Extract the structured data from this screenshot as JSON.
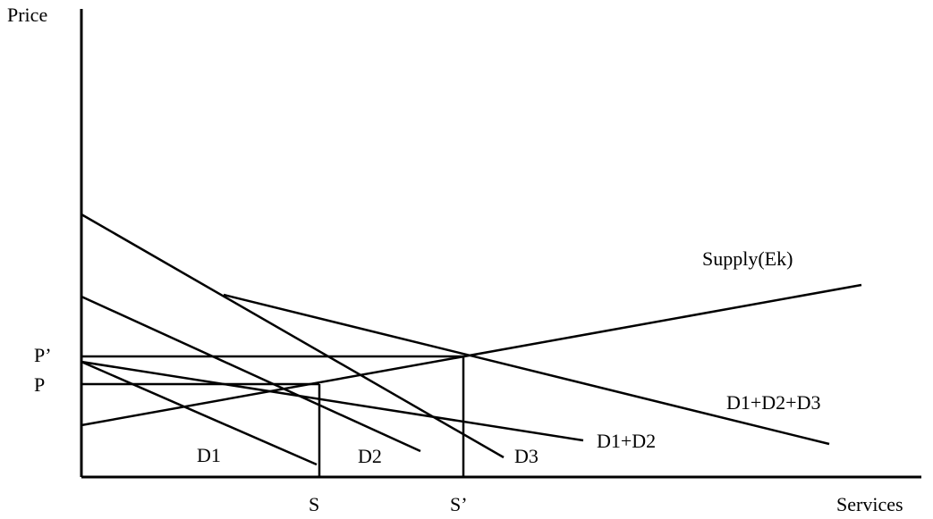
{
  "labels": {
    "price": "Price",
    "services": "Services",
    "p_prime": "P’",
    "p": "P",
    "s": "S",
    "s_prime": "S’",
    "supply": "Supply(Ek)",
    "d1": "D1",
    "d2": "D2",
    "d3": "D3",
    "d1_d2": "D1+D2",
    "d1_d2_d3": "D1+D2+D3"
  }
}
